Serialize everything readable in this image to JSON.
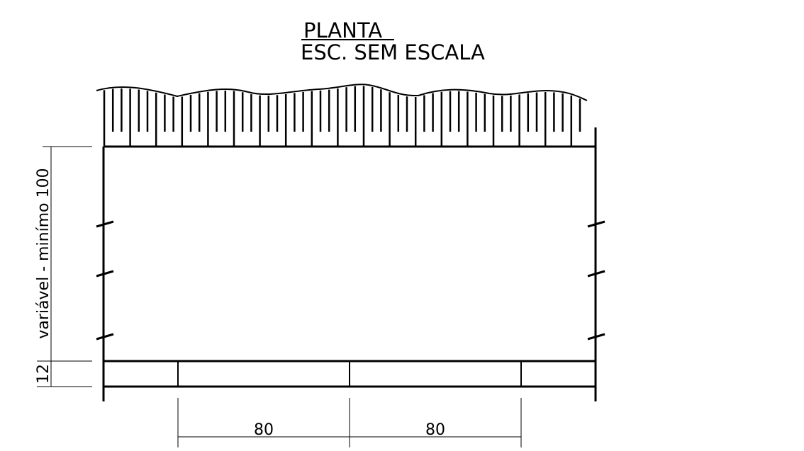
{
  "title": {
    "main": "PLANTA",
    "scale": "ESC. SEM ESCALA"
  },
  "dimensions": {
    "height_variable": "variável - minímo 100",
    "curb_thickness": "12",
    "span_left": "80",
    "span_right": "80"
  }
}
